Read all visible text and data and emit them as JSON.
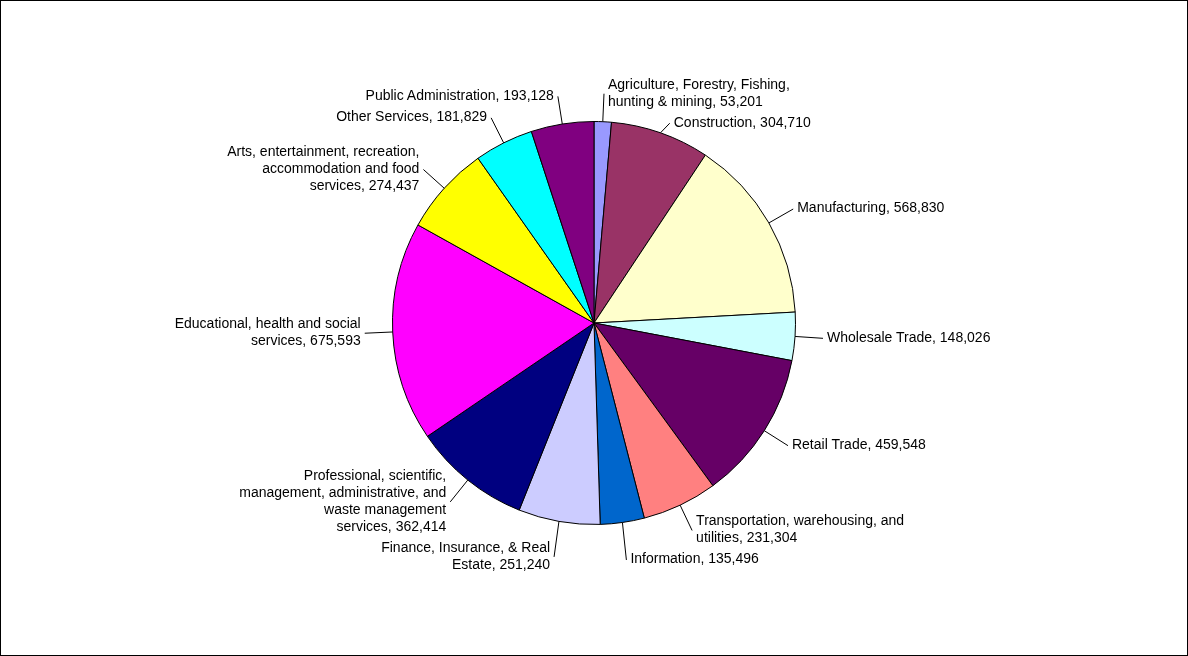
{
  "chart_data": {
    "type": "pie",
    "categories": [
      "Agriculture, Forestry, Fishing, hunting & mining",
      "Construction",
      "Manufacturing",
      "Wholesale Trade",
      "Retail Trade",
      "Transportation, warehousing, and utilities",
      "Information",
      "Finance, Insurance, & Real Estate",
      "Professional, scientific, management, administrative, and waste management services",
      "Educational, health and social services",
      "Arts, entertainment, recreation, accommodation and food services",
      "Other Services",
      "Public Administration"
    ],
    "values": [
      53201,
      304710,
      568830,
      148026,
      459548,
      231304,
      135496,
      251240,
      362414,
      675593,
      274437,
      181829,
      193128
    ],
    "value_labels": [
      "53,201",
      "304,710",
      "568,830",
      "148,026",
      "459,548",
      "231,304",
      "135,496",
      "251,240",
      "362,414",
      "675,593",
      "274,437",
      "181,829",
      "193,128"
    ],
    "colors": [
      "#9999ff",
      "#993366",
      "#ffffcc",
      "#ccffff",
      "#660066",
      "#ff8080",
      "#0066cc",
      "#ccccff",
      "#000080",
      "#ff00ff",
      "#ffff00",
      "#00ffff",
      "#800080"
    ],
    "legend": false
  }
}
